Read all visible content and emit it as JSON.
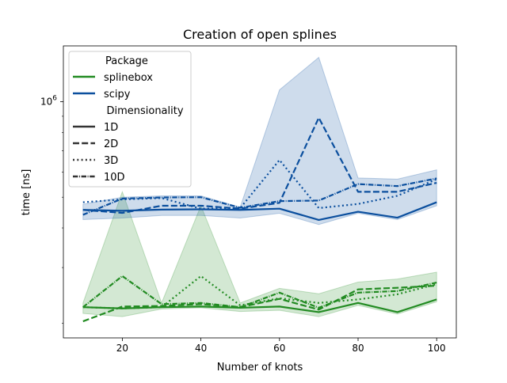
{
  "chart_data": {
    "type": "line",
    "title": "Creation of open splines",
    "xlabel": "Number of knots",
    "ylabel": "time [ns]",
    "x": [
      10,
      20,
      30,
      40,
      50,
      60,
      70,
      80,
      90,
      100
    ],
    "xlim": [
      5,
      105
    ],
    "x_ticks": [
      20,
      40,
      60,
      80,
      100
    ],
    "x_tick_labels": [
      "20",
      "40",
      "60",
      "80",
      "100"
    ],
    "yscale": "log",
    "ylim": [
      180000,
      1500000
    ],
    "y_ticks": [
      1000000
    ],
    "y_tick_labels": [
      "10^6"
    ],
    "grid": false,
    "legend": {
      "position": "top-left",
      "hue_title": "Package",
      "style_title": "Dimensionality",
      "packages": [
        {
          "name": "splinebox",
          "color": "#228b22"
        },
        {
          "name": "scipy",
          "color": "#0b4f9e"
        }
      ],
      "dims": [
        {
          "name": "1D",
          "dash": "solid"
        },
        {
          "name": "2D",
          "dash": "dashed"
        },
        {
          "name": "3D",
          "dash": "dotted"
        },
        {
          "name": "10D",
          "dash": "dashdot"
        }
      ]
    },
    "bands": [
      {
        "package": "splinebox",
        "lower": [
          215000,
          210000,
          222000,
          224000,
          218000,
          220000,
          210000,
          228000,
          214000,
          234000
        ],
        "upper": [
          232000,
          520000,
          232000,
          470000,
          232000,
          258000,
          248000,
          270000,
          276000,
          290000
        ]
      },
      {
        "package": "scipy",
        "lower": [
          425000,
          430000,
          438000,
          438000,
          430000,
          445000,
          410000,
          445000,
          425000,
          470000
        ],
        "upper": [
          475000,
          500000,
          505000,
          505000,
          465000,
          1090000,
          1380000,
          575000,
          570000,
          610000
        ]
      }
    ],
    "series": [
      {
        "package": "splinebox",
        "dim": "1D",
        "values": [
          225000,
          223000,
          225000,
          226000,
          224000,
          226000,
          217000,
          232000,
          217000,
          238000
        ]
      },
      {
        "package": "splinebox",
        "dim": "2D",
        "values": [
          203000,
          226000,
          227000,
          230000,
          225000,
          239000,
          221000,
          256000,
          259000,
          263000
        ]
      },
      {
        "package": "splinebox",
        "dim": "3D",
        "values": [
          225000,
          223000,
          225000,
          282000,
          228000,
          240000,
          232000,
          238000,
          247000,
          266000
        ]
      },
      {
        "package": "splinebox",
        "dim": "10D",
        "values": [
          225000,
          282000,
          230000,
          232000,
          225000,
          250000,
          224000,
          250000,
          253000,
          269000
        ]
      },
      {
        "package": "scipy",
        "dim": "1D",
        "values": [
          456000,
          453000,
          457000,
          458000,
          456000,
          460000,
          424000,
          450000,
          431000,
          482000
        ]
      },
      {
        "package": "scipy",
        "dim": "2D",
        "values": [
          456000,
          446000,
          470000,
          470000,
          460000,
          480000,
          890000,
          520000,
          520000,
          555000
        ]
      },
      {
        "package": "scipy",
        "dim": "3D",
        "values": [
          482000,
          492000,
          497000,
          460000,
          462000,
          655000,
          462000,
          476000,
          505000,
          570000
        ]
      },
      {
        "package": "scipy",
        "dim": "10D",
        "values": [
          440000,
          495000,
          499000,
          500000,
          463000,
          486000,
          488000,
          550000,
          542000,
          573000
        ]
      }
    ]
  }
}
